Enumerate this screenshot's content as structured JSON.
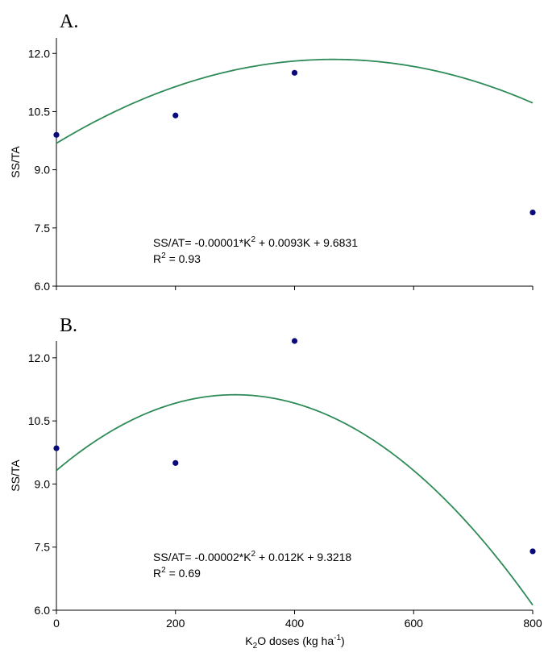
{
  "chart_data": [
    {
      "type": "scatter",
      "panel_label": "A.",
      "ylabel": "SS/TA",
      "xlabel": "",
      "ylim": [
        6.0,
        12.4
      ],
      "xlim": [
        0,
        800
      ],
      "yticks": [
        "6.0",
        "7.5",
        "9.0",
        "10.5",
        "12.0"
      ],
      "ytick_values": [
        6.0,
        7.5,
        9.0,
        10.5,
        12.0
      ],
      "xticks": [],
      "xtick_values": [
        0,
        200,
        400,
        600,
        800
      ],
      "series": [
        {
          "x": [
            0,
            200,
            400,
            800
          ],
          "values": [
            9.9,
            10.4,
            11.5,
            7.9
          ]
        }
      ],
      "fit": {
        "a": -1e-05,
        "b": 0.0093,
        "c": 9.6831,
        "color": "#2e8b57"
      },
      "equation": {
        "prefix": "SS/AT= -0.00001*K",
        "sup": "2",
        "suffix": " + 0.0093K + 9.6831"
      },
      "r2": {
        "prefix": "R",
        "sup": "2",
        "suffix": " = 0.93"
      },
      "point_color": "#0a0a7a",
      "grid": false
    },
    {
      "type": "scatter",
      "panel_label": "B.",
      "ylabel": "SS/TA",
      "xlabel": "",
      "ylim": [
        6.0,
        12.4
      ],
      "xlim": [
        0,
        800
      ],
      "yticks": [
        "6.0",
        "7.5",
        "9.0",
        "10.5",
        "12.0"
      ],
      "ytick_values": [
        6.0,
        7.5,
        9.0,
        10.5,
        12.0
      ],
      "xticks": [
        "0",
        "200",
        "400",
        "600",
        "800"
      ],
      "xtick_values": [
        0,
        200,
        400,
        600,
        800
      ],
      "series": [
        {
          "x": [
            0,
            200,
            400,
            800
          ],
          "values": [
            9.85,
            9.5,
            12.4,
            7.4
          ]
        }
      ],
      "fit": {
        "a": -2e-05,
        "b": 0.012,
        "c": 9.3218,
        "color": "#2e8b57"
      },
      "equation": {
        "prefix": "SS/AT= -0.00002*K",
        "sup": "2",
        "suffix": " + 0.012K + 9.3218"
      },
      "r2": {
        "prefix": "R",
        "sup": "2",
        "suffix": " = 0.69"
      },
      "point_color": "#0a0a7a",
      "grid": false
    }
  ],
  "shared_xlabel": {
    "prefix": "K",
    "sub": "2",
    "mid": "O doses (kg ha",
    "sup": "-1",
    "suffix": ")"
  }
}
